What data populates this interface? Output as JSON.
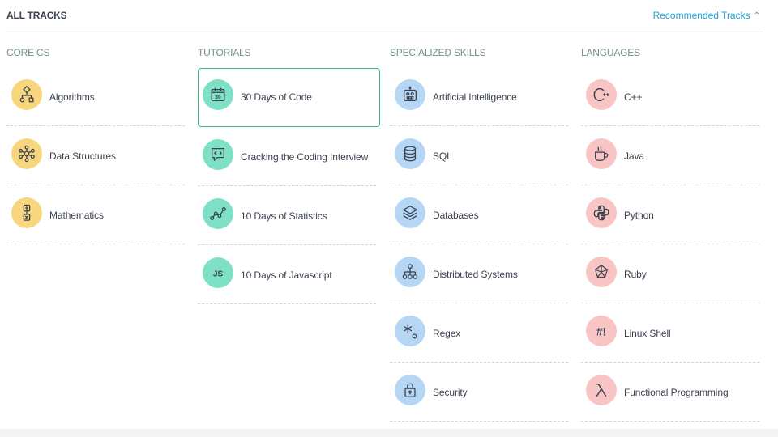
{
  "header": {
    "title": "ALL TRACKS",
    "recommended_label": "Recommended Tracks",
    "recommended_chevron": "^"
  },
  "columns": [
    {
      "title": "CORE CS",
      "color": "#f8d67e",
      "items": [
        {
          "label": "Algorithms",
          "icon": "flowchart-icon"
        },
        {
          "label": "Data Structures",
          "icon": "network-nodes-icon"
        },
        {
          "label": "Mathematics",
          "icon": "math-operators-icon"
        }
      ]
    },
    {
      "title": "TUTORIALS",
      "color": "#7ee0c4",
      "items": [
        {
          "label": "30 Days of Code",
          "icon": "calendar-30-icon",
          "selected": true
        },
        {
          "label": "Cracking the Coding Interview",
          "icon": "code-bubble-icon"
        },
        {
          "label": "10 Days of Statistics",
          "icon": "line-graph-icon"
        },
        {
          "label": "10 Days of Javascript",
          "icon": "js-icon"
        }
      ]
    },
    {
      "title": "SPECIALIZED SKILLS",
      "color": "#b5d6f5",
      "items": [
        {
          "label": "Artificial Intelligence",
          "icon": "robot-icon"
        },
        {
          "label": "SQL",
          "icon": "database-cylinder-icon"
        },
        {
          "label": "Databases",
          "icon": "layers-icon"
        },
        {
          "label": "Distributed Systems",
          "icon": "hierarchy-icon"
        },
        {
          "label": "Regex",
          "icon": "regex-icon"
        },
        {
          "label": "Security",
          "icon": "lock-icon"
        }
      ]
    },
    {
      "title": "LANGUAGES",
      "color": "#f9c4c4",
      "items": [
        {
          "label": "C++",
          "icon": "cpp-icon"
        },
        {
          "label": "Java",
          "icon": "coffee-cup-icon"
        },
        {
          "label": "Python",
          "icon": "python-icon"
        },
        {
          "label": "Ruby",
          "icon": "ruby-gem-icon"
        },
        {
          "label": "Linux Shell",
          "icon": "shell-hashbang-icon"
        },
        {
          "label": "Functional Programming",
          "icon": "lambda-icon"
        }
      ]
    }
  ]
}
